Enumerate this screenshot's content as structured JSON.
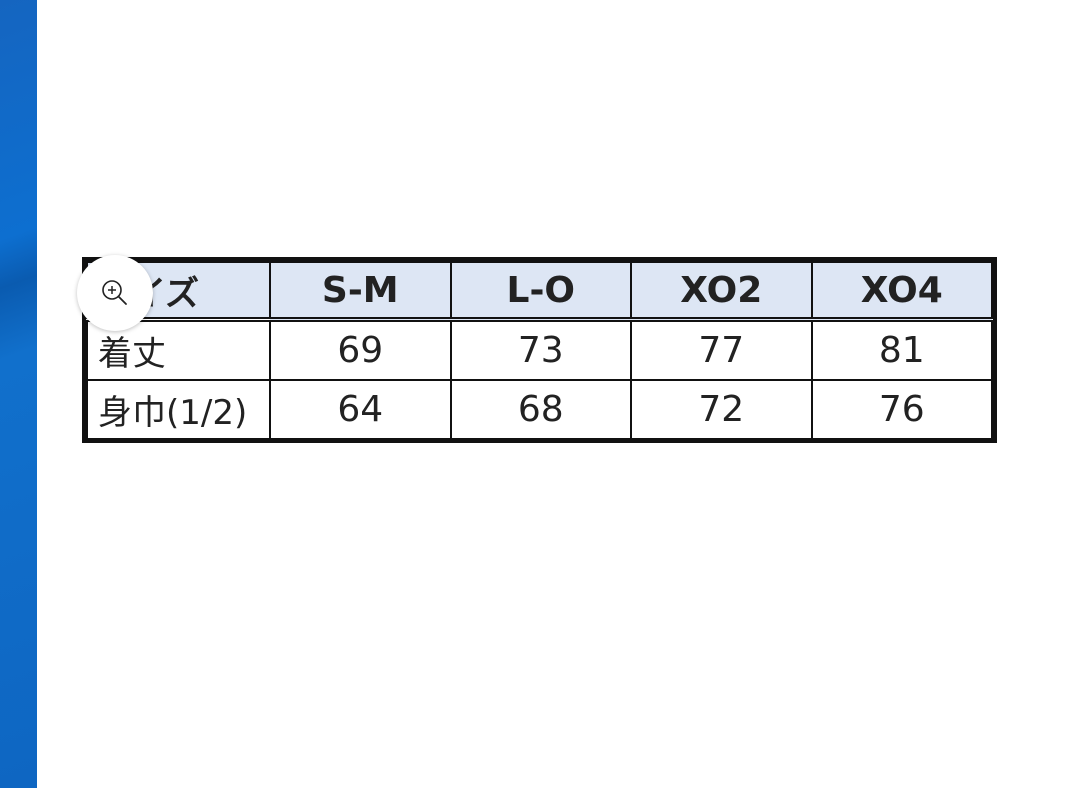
{
  "table": {
    "headers": [
      "サイズ",
      "S-M",
      "L-O",
      "XO2",
      "XO4"
    ],
    "rows": [
      {
        "label": "着丈",
        "values": [
          "69",
          "73",
          "77",
          "81"
        ]
      },
      {
        "label": "身巾(1/2)",
        "values": [
          "64",
          "68",
          "72",
          "76"
        ]
      }
    ],
    "header_bg": "#dde6f4"
  },
  "zoom_button": {
    "icon": "zoom-in-icon"
  }
}
